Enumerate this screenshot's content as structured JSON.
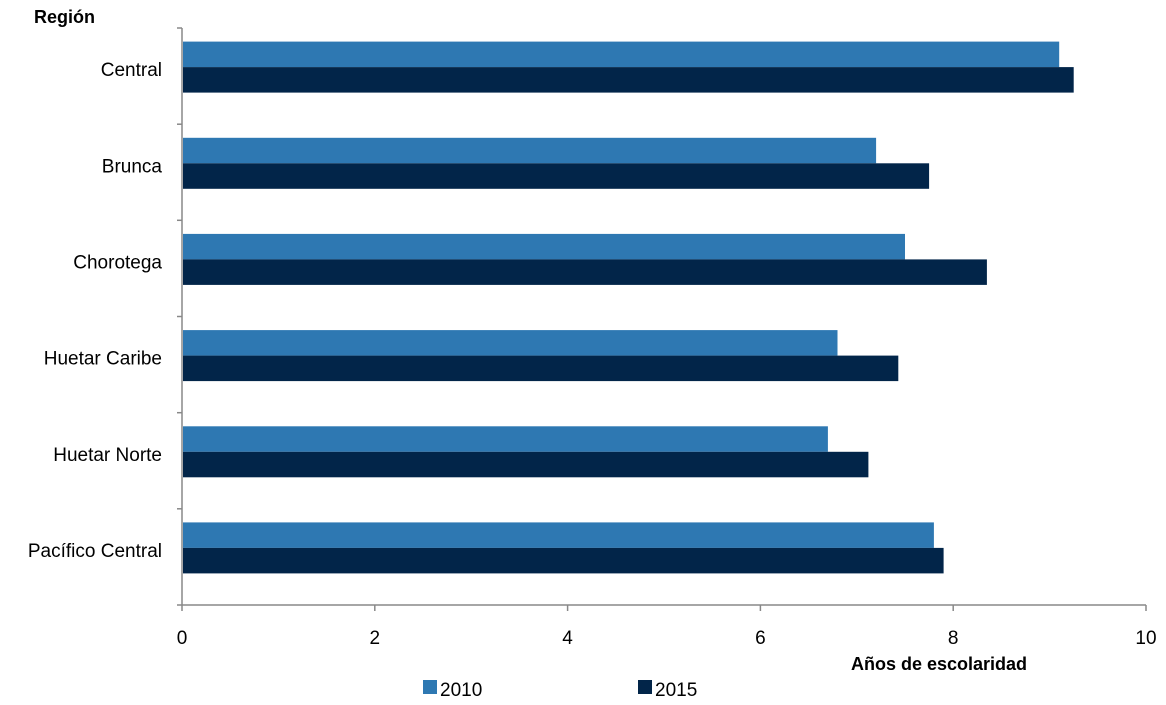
{
  "chart_data": {
    "type": "bar",
    "orientation": "horizontal",
    "title": "",
    "ylabel": "Región",
    "xlabel": "Años de escolaridad",
    "categories": [
      "Central",
      "Brunca",
      "Chorotega",
      "Huetar Caribe",
      "Huetar Norte",
      "Pacífico Central"
    ],
    "series": [
      {
        "name": "2010",
        "color": "#2e78b2",
        "values": [
          9.1,
          7.2,
          7.5,
          6.8,
          6.7,
          7.8
        ]
      },
      {
        "name": "2015",
        "color": "#022549",
        "values": [
          9.25,
          7.75,
          8.35,
          7.43,
          7.12,
          7.9
        ]
      }
    ],
    "xlim": [
      0,
      10
    ],
    "xticks": [
      "0",
      "2",
      "4",
      "6",
      "8",
      "10"
    ],
    "grid": false,
    "legend_position": "bottom"
  }
}
